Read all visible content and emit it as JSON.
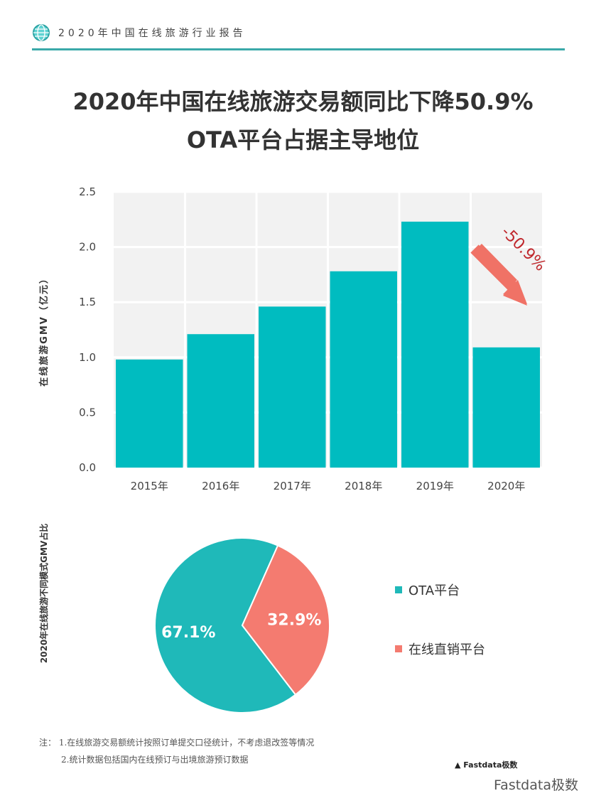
{
  "header": {
    "title": "2020年中国在线旅游行业报告",
    "icon": "globe-icon",
    "accent": "#3aa9a9"
  },
  "title": {
    "line1": "2020年中国在线旅游交易额同比下降50.9%",
    "line2": "OTA平台占据主导地位"
  },
  "chart_data": [
    {
      "type": "bar",
      "ylabel": "在线旅游GMV（亿元）",
      "categories": [
        "2015年",
        "2016年",
        "2017年",
        "2018年",
        "2019年",
        "2020年"
      ],
      "values": [
        0.98,
        1.21,
        1.46,
        1.78,
        2.23,
        1.09
      ],
      "ylim": [
        0,
        2.5
      ],
      "yticks": [
        "0.0",
        "0.5",
        "1.0",
        "1.5",
        "2.0",
        "2.5"
      ],
      "grid": true,
      "color": "#00bcc0",
      "annotation": "-50.9%",
      "annotation_color": "#f07266"
    },
    {
      "type": "pie",
      "ylabel": "2020年在线旅游不同模式GMV占比",
      "slices": [
        {
          "name": "OTA平台",
          "value": 67.1,
          "label": "67.1%",
          "color": "#1fb9b9"
        },
        {
          "name": "在线直销平台",
          "value": 32.9,
          "label": "32.9%",
          "color": "#f47b70"
        }
      ],
      "legend": "right"
    }
  ],
  "notes": {
    "line1": "注：  1.在线旅游交易额统计按照订单提交口径统计，不考虑退改签等情况",
    "line2": "2.统计数据包括国内在线预订与出境旅游预订数据"
  },
  "watermark": {
    "logo": "Fastdata极数",
    "text": "Fastdata极数"
  }
}
